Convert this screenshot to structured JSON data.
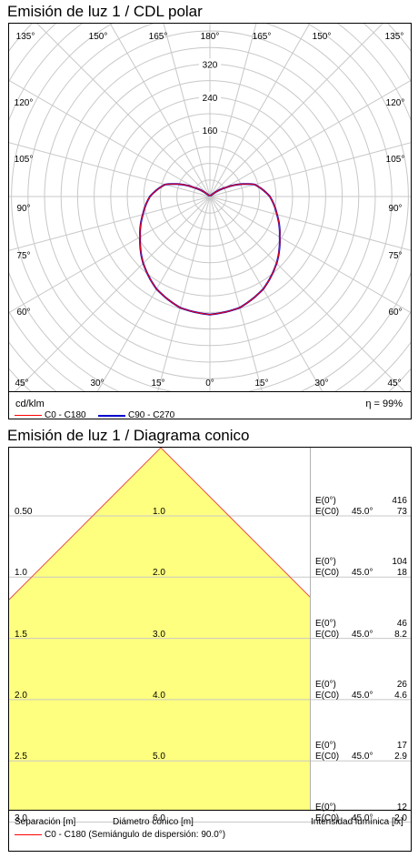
{
  "polar": {
    "title": "Emisión de luz 1 / CDL polar",
    "unit": "cd/klm",
    "efficiency": "η = 99%",
    "angle_labels_top": [
      "135°",
      "150°",
      "165°",
      "180°",
      "165°",
      "150°",
      "135°"
    ],
    "angle_labels_side": [
      "120°",
      "105°",
      "90°",
      "75°",
      "60°",
      "45°"
    ],
    "angle_labels_bottom": [
      "45°",
      "30°",
      "15°",
      "0°",
      "15°",
      "30°",
      "45°"
    ],
    "radial_labels": [
      "160",
      "240",
      "320"
    ],
    "legend": [
      {
        "label": "C0 - C180",
        "color": "#ff0000"
      },
      {
        "label": "C90 - C270",
        "color": "#0000cc"
      }
    ]
  },
  "chart_data": [
    {
      "type": "line",
      "subtype": "polar",
      "title": "Emisión de luz 1 / CDL polar",
      "unit": "cd/klm",
      "radial_range": [
        0,
        400
      ],
      "radial_ticks": [
        160,
        240,
        320
      ],
      "series": [
        {
          "name": "C90 - C270",
          "color": "#0000cc",
          "angles_deg": [
            0,
            15,
            30,
            45,
            60,
            75,
            90,
            105,
            120,
            135,
            150,
            165,
            180
          ],
          "values": [
            285,
            278,
            258,
            228,
            195,
            168,
            145,
            112,
            42,
            0,
            0,
            0,
            0
          ]
        },
        {
          "name": "C0 - C180",
          "color": "#ff0000",
          "angles_deg": [
            0,
            15,
            30,
            45,
            60,
            75,
            90,
            105,
            120,
            135,
            150,
            165,
            180
          ],
          "values": [
            285,
            278,
            258,
            228,
            195,
            168,
            145,
            112,
            42,
            0,
            0,
            0,
            0
          ]
        }
      ],
      "efficiency": "η = 99%"
    },
    {
      "type": "area",
      "subtype": "conic",
      "title": "Emisión de luz 1 / Diagrama conico",
      "distance_m": [
        0.5,
        1.0,
        1.5,
        2.0,
        2.5,
        3.0
      ],
      "diameter_m": [
        1.0,
        2.0,
        3.0,
        4.0,
        5.0,
        6.0
      ],
      "E0": [
        416,
        104,
        46,
        26,
        17,
        12
      ],
      "EC0": [
        73,
        18,
        8.2,
        4.6,
        2.9,
        2.0
      ],
      "half_angle_deg": 45.0,
      "beam_half_angle_deg": 90.0
    }
  ],
  "conic": {
    "title": "Emisión de luz 1 / Diagrama conico",
    "rows": [
      {
        "sep": "0.50",
        "diam": "1.0",
        "e0_label": "E(0°)",
        "e0": "416",
        "ec0_label": "E(C0)",
        "angle": "45.0°",
        "ec0": "73"
      },
      {
        "sep": "1.0",
        "diam": "2.0",
        "e0_label": "E(0°)",
        "e0": "104",
        "ec0_label": "E(C0)",
        "angle": "45.0°",
        "ec0": "18"
      },
      {
        "sep": "1.5",
        "diam": "3.0",
        "e0_label": "E(0°)",
        "e0": "46",
        "ec0_label": "E(C0)",
        "angle": "45.0°",
        "ec0": "8.2"
      },
      {
        "sep": "2.0",
        "diam": "4.0",
        "e0_label": "E(0°)",
        "e0": "26",
        "ec0_label": "E(C0)",
        "angle": "45.0°",
        "ec0": "4.6"
      },
      {
        "sep": "2.5",
        "diam": "5.0",
        "e0_label": "E(0°)",
        "e0": "17",
        "ec0_label": "E(C0)",
        "angle": "45.0°",
        "ec0": "2.9"
      },
      {
        "sep": "3.0",
        "diam": "6.0",
        "e0_label": "E(0°)",
        "e0": "12",
        "ec0_label": "E(C0)",
        "angle": "45.0°",
        "ec0": "2.0"
      }
    ],
    "footer": {
      "separation": "Separación [m]",
      "diameter": "Diámetro cónico [m]",
      "intensity": "Intensidad lumínica [lx]"
    },
    "legend": {
      "label": "C0 - C180 (Semiángulo de dispersión: 90.0°)",
      "color": "#ff0000"
    },
    "fill_color": "#ffff7f",
    "line_color": "#e85050"
  }
}
